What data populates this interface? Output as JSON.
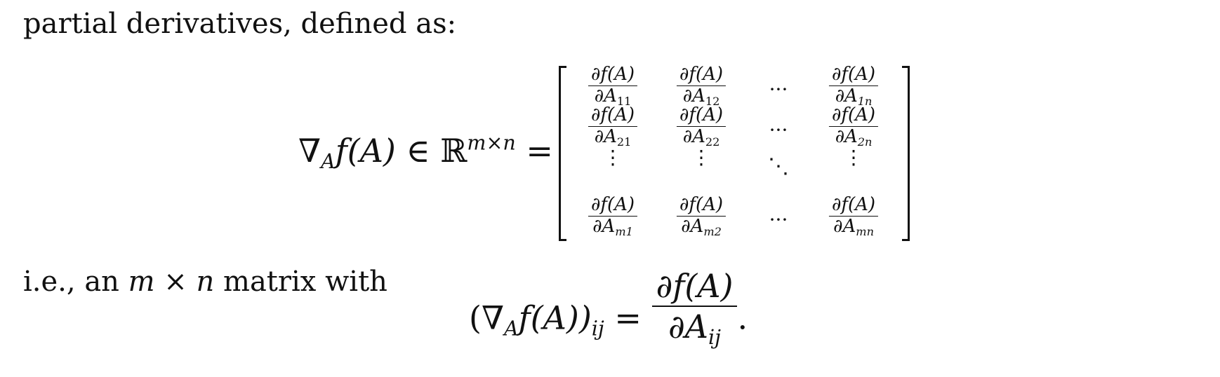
{
  "text": {
    "line1": "partial derivatives, defined as:",
    "line2_prefix": "i.e., an ",
    "line2_m": "m",
    "line2_times": " × ",
    "line2_n": "n",
    "line2_suffix": " matrix with"
  },
  "equation1": {
    "nabla": "∇",
    "nabla_sub": "A",
    "f": "f",
    "arg": "(A)",
    "in": " ∈ ",
    "reals": "ℝ",
    "reals_sup": "m×n",
    "equals": " ="
  },
  "matrix": {
    "numerator": "∂f(A)",
    "row1": [
      "∂A11",
      "∂A12",
      "···",
      "∂A1n"
    ],
    "row2": [
      "∂A21",
      "∂A22",
      "···",
      "∂A2n"
    ],
    "row3": [
      "⋮",
      "⋮",
      "⋱",
      "⋮"
    ],
    "row4": [
      "∂Am1",
      "∂Am2",
      "···",
      "∂Amn"
    ],
    "den_base": "∂A",
    "subs": {
      "r1": [
        "11",
        "12",
        "1n"
      ],
      "r2": [
        "21",
        "22",
        "2n"
      ],
      "r4": [
        "m1",
        "m2",
        "mn"
      ]
    }
  },
  "equation2": {
    "lhs_open": "(∇",
    "lhs_sub": "A",
    "lhs_f": "f",
    "lhs_arg": "(A))",
    "lhs_sub2": "ij",
    "equals": " = ",
    "numerator": "∂f(A)",
    "den_base": "∂A",
    "den_sub": "ij",
    "period": "."
  }
}
